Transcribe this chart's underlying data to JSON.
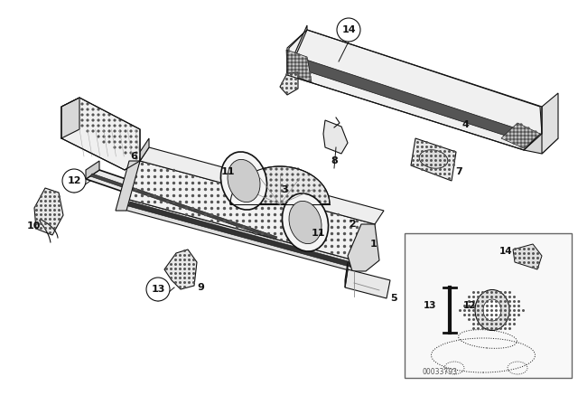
{
  "bg_color": "#ffffff",
  "fig_width": 6.4,
  "fig_height": 4.48,
  "dpi": 100,
  "lc": "#111111",
  "lc_light": "#888888",
  "watermark": "00033793"
}
